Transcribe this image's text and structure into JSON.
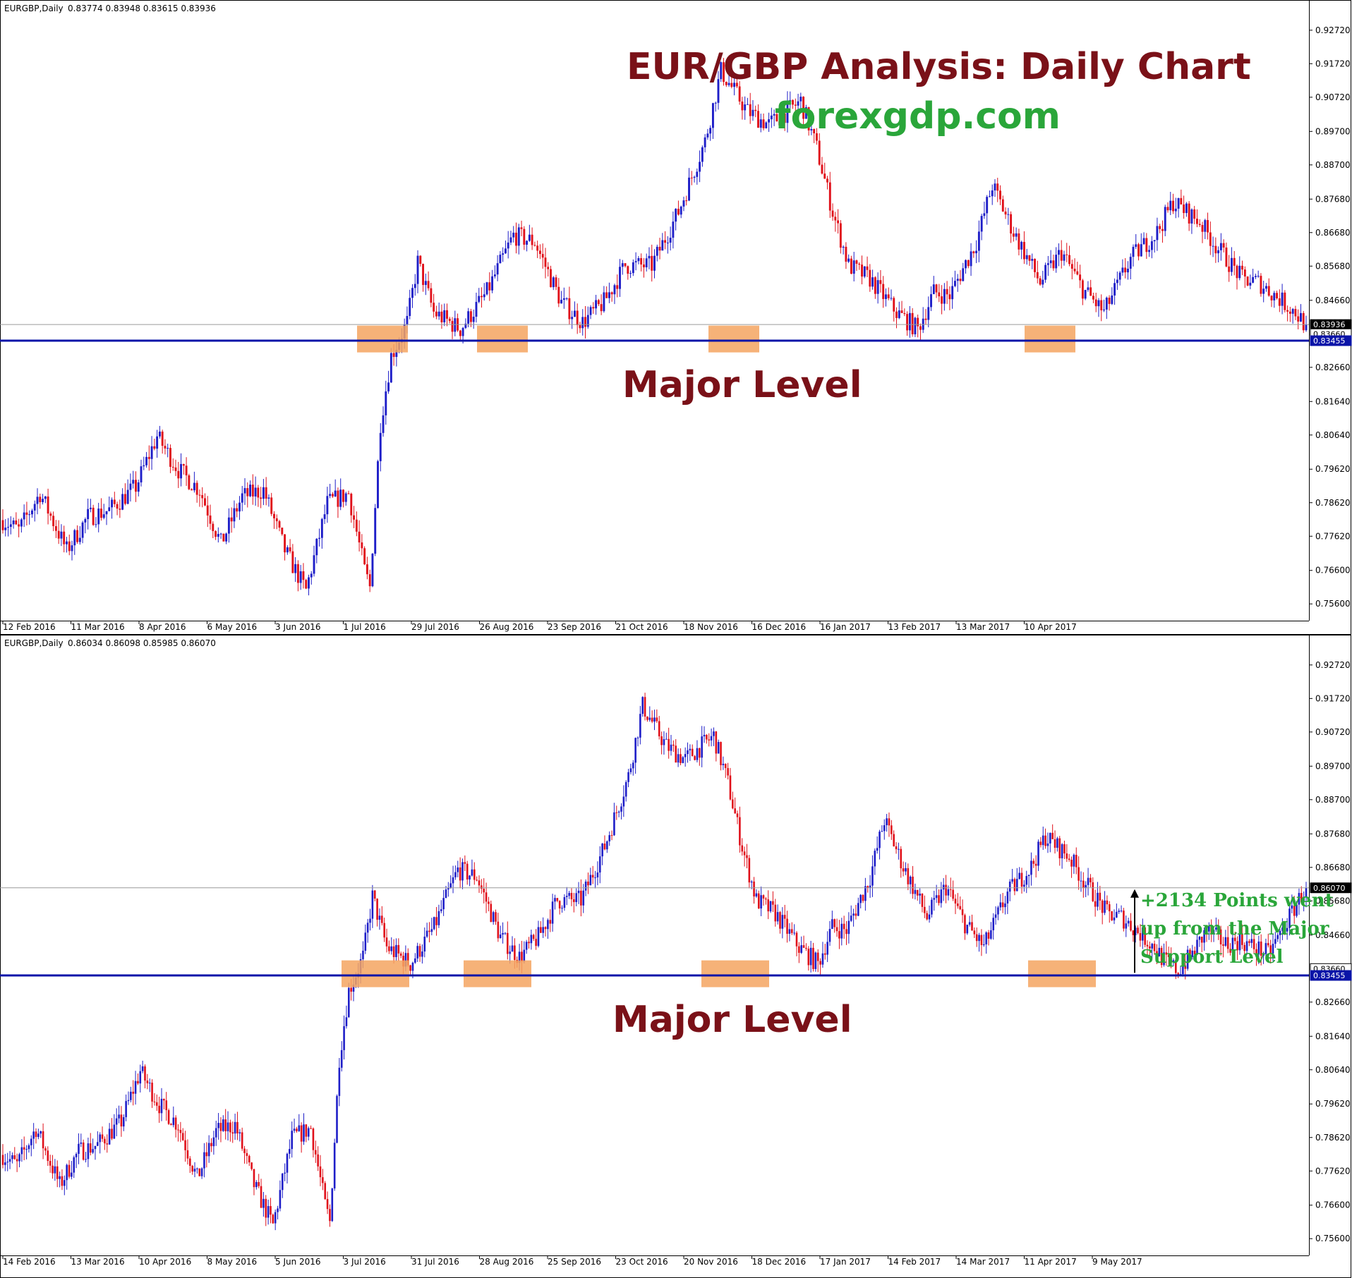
{
  "chart_data": [
    {
      "type": "candlestick",
      "symbol_header": "EURGBP,Daily",
      "ohlc_header": "0.83774 0.83948 0.83615 0.83936",
      "title": "EUR/GBP Analysis: Daily Chart",
      "site": "forexgdp.com",
      "annotation": "Major Level",
      "ylim": [
        0.751,
        0.932
      ],
      "y_ticks": [
        "0.92720",
        "0.91720",
        "0.90720",
        "0.89700",
        "0.88700",
        "0.87680",
        "0.86680",
        "0.85680",
        "0.84660",
        "0.82660",
        "0.81640",
        "0.80640",
        "0.79620",
        "0.78620",
        "0.77620",
        "0.76600",
        "0.75600"
      ],
      "x_ticks": [
        "12 Feb 2016",
        "11 Mar 2016",
        "8 Apr 2016",
        "6 May 2016",
        "3 Jun 2016",
        "1 Jul 2016",
        "29 Jul 2016",
        "26 Aug 2016",
        "23 Sep 2016",
        "21 Oct 2016",
        "18 Nov 2016",
        "16 Dec 2016",
        "16 Jan 2017",
        "13 Feb 2017",
        "13 Mar 2017",
        "10 Apr 2017"
      ],
      "price_tags": [
        {
          "label": "0.83936",
          "value": 0.83936
        },
        {
          "label": "0.83660",
          "value": 0.8366
        },
        {
          "label": "0.83455",
          "value": 0.83455
        }
      ],
      "major_level": 0.83455,
      "current_price": 0.83936,
      "support_zones": [
        "1 Jul 2016",
        "26 Aug 2016",
        "18 Nov 2016",
        "10 Apr 2017"
      ],
      "price_path": [
        [
          0,
          0.781
        ],
        [
          6,
          0.778
        ],
        [
          14,
          0.789
        ],
        [
          24,
          0.772
        ],
        [
          32,
          0.782
        ],
        [
          40,
          0.784
        ],
        [
          50,
          0.791
        ],
        [
          58,
          0.806
        ],
        [
          66,
          0.796
        ],
        [
          74,
          0.79
        ],
        [
          82,
          0.774
        ],
        [
          90,
          0.788
        ],
        [
          98,
          0.79
        ],
        [
          106,
          0.772
        ],
        [
          114,
          0.76
        ],
        [
          122,
          0.786
        ],
        [
          130,
          0.789
        ],
        [
          136,
          0.766
        ],
        [
          138,
          0.761
        ],
        [
          142,
          0.81
        ],
        [
          146,
          0.83
        ],
        [
          152,
          0.84
        ],
        [
          156,
          0.858
        ],
        [
          162,
          0.843
        ],
        [
          172,
          0.838
        ],
        [
          182,
          0.849
        ],
        [
          192,
          0.866
        ],
        [
          200,
          0.864
        ],
        [
          210,
          0.846
        ],
        [
          218,
          0.84
        ],
        [
          226,
          0.846
        ],
        [
          234,
          0.857
        ],
        [
          244,
          0.857
        ],
        [
          254,
          0.873
        ],
        [
          264,
          0.894
        ],
        [
          270,
          0.915
        ],
        [
          280,
          0.903
        ],
        [
          288,
          0.899
        ],
        [
          300,
          0.906
        ],
        [
          306,
          0.892
        ],
        [
          312,
          0.873
        ],
        [
          318,
          0.857
        ],
        [
          326,
          0.853
        ],
        [
          336,
          0.843
        ],
        [
          344,
          0.838
        ],
        [
          350,
          0.849
        ],
        [
          356,
          0.848
        ],
        [
          366,
          0.864
        ],
        [
          372,
          0.881
        ],
        [
          380,
          0.867
        ],
        [
          390,
          0.852
        ],
        [
          398,
          0.861
        ],
        [
          406,
          0.85
        ],
        [
          414,
          0.843
        ],
        [
          424,
          0.859
        ],
        [
          434,
          0.867
        ],
        [
          440,
          0.876
        ],
        [
          450,
          0.87
        ],
        [
          456,
          0.863
        ],
        [
          466,
          0.853
        ],
        [
          472,
          0.852
        ],
        [
          480,
          0.847
        ],
        [
          486,
          0.843
        ],
        [
          490,
          0.839
        ]
      ]
    },
    {
      "type": "candlestick",
      "symbol_header": "EURGBP,Daily",
      "ohlc_header": "0.86034 0.86098 0.85985 0.86070",
      "annotation": "Major Level",
      "note_lines": [
        "+2134 Points went",
        "up from the Major",
        "Support Level"
      ],
      "ylim": [
        0.751,
        0.932
      ],
      "y_ticks": [
        "0.92720",
        "0.91720",
        "0.90720",
        "0.89700",
        "0.88700",
        "0.87680",
        "0.86680",
        "0.85680",
        "0.84660",
        "0.82660",
        "0.81640",
        "0.80640",
        "0.79620",
        "0.78620",
        "0.77620",
        "0.76600",
        "0.75600"
      ],
      "x_ticks": [
        "14 Feb 2016",
        "13 Mar 2016",
        "10 Apr 2016",
        "8 May 2016",
        "5 Jun 2016",
        "3 Jul 2016",
        "31 Jul 2016",
        "28 Aug 2016",
        "25 Sep 2016",
        "23 Oct 2016",
        "20 Nov 2016",
        "18 Dec 2016",
        "17 Jan 2017",
        "14 Feb 2017",
        "14 Mar 2017",
        "11 Apr 2017",
        "9 May 2017"
      ],
      "price_tags": [
        {
          "label": "0.86070",
          "value": 0.8607
        },
        {
          "label": "0.83660",
          "value": 0.8366
        },
        {
          "label": "0.83455",
          "value": 0.83455
        }
      ],
      "major_level": 0.83455,
      "current_price": 0.8607,
      "support_zones": [
        "3 Jul 2016",
        "28 Aug 2016",
        "20 Nov 2016",
        "11 Apr 2017"
      ],
      "price_path": [
        [
          0,
          0.781
        ],
        [
          6,
          0.778
        ],
        [
          14,
          0.789
        ],
        [
          24,
          0.772
        ],
        [
          32,
          0.782
        ],
        [
          40,
          0.784
        ],
        [
          50,
          0.791
        ],
        [
          58,
          0.806
        ],
        [
          66,
          0.796
        ],
        [
          74,
          0.79
        ],
        [
          82,
          0.774
        ],
        [
          90,
          0.788
        ],
        [
          98,
          0.79
        ],
        [
          106,
          0.772
        ],
        [
          114,
          0.76
        ],
        [
          122,
          0.786
        ],
        [
          130,
          0.789
        ],
        [
          136,
          0.766
        ],
        [
          138,
          0.761
        ],
        [
          142,
          0.81
        ],
        [
          146,
          0.83
        ],
        [
          152,
          0.84
        ],
        [
          156,
          0.858
        ],
        [
          162,
          0.843
        ],
        [
          172,
          0.838
        ],
        [
          182,
          0.849
        ],
        [
          192,
          0.866
        ],
        [
          200,
          0.864
        ],
        [
          210,
          0.846
        ],
        [
          218,
          0.84
        ],
        [
          226,
          0.846
        ],
        [
          234,
          0.857
        ],
        [
          244,
          0.857
        ],
        [
          254,
          0.873
        ],
        [
          264,
          0.894
        ],
        [
          270,
          0.915
        ],
        [
          280,
          0.903
        ],
        [
          288,
          0.899
        ],
        [
          300,
          0.906
        ],
        [
          306,
          0.892
        ],
        [
          312,
          0.873
        ],
        [
          318,
          0.857
        ],
        [
          326,
          0.853
        ],
        [
          336,
          0.843
        ],
        [
          344,
          0.838
        ],
        [
          350,
          0.849
        ],
        [
          356,
          0.848
        ],
        [
          366,
          0.864
        ],
        [
          372,
          0.881
        ],
        [
          380,
          0.867
        ],
        [
          390,
          0.852
        ],
        [
          398,
          0.861
        ],
        [
          406,
          0.85
        ],
        [
          414,
          0.843
        ],
        [
          424,
          0.859
        ],
        [
          434,
          0.867
        ],
        [
          440,
          0.876
        ],
        [
          450,
          0.87
        ],
        [
          456,
          0.863
        ],
        [
          466,
          0.853
        ],
        [
          472,
          0.852
        ],
        [
          480,
          0.847
        ],
        [
          486,
          0.843
        ],
        [
          490,
          0.839
        ],
        [
          496,
          0.836
        ],
        [
          502,
          0.841
        ],
        [
          508,
          0.848
        ],
        [
          516,
          0.844
        ],
        [
          522,
          0.845
        ],
        [
          528,
          0.843
        ],
        [
          534,
          0.841
        ],
        [
          540,
          0.848
        ],
        [
          546,
          0.856
        ],
        [
          550,
          0.861
        ]
      ]
    }
  ],
  "colors": {
    "bull": "#1e1ec8",
    "bear": "#e0101a",
    "major_line": "#0a14a8",
    "zone": "#f4a460",
    "title": "#7a1118",
    "site": "#2aa63a",
    "note": "#2aa63a"
  }
}
